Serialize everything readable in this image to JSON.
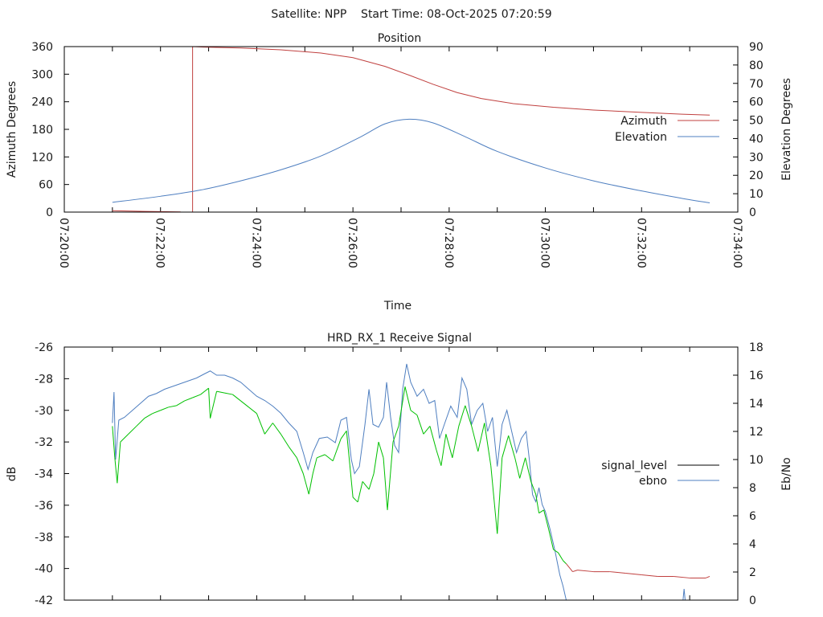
{
  "header": {
    "title": "Satellite: NPP    Start Time: 08-Oct-2025 07:20:59"
  },
  "colors": {
    "azimuth": "#c0403f",
    "elevation": "#4f7fc0",
    "signal_good": "#00c000",
    "signal_low": "#c0403f",
    "ebno": "#4f7fc0",
    "legend_signal": "#000000"
  },
  "chart_data": [
    {
      "type": "line",
      "title": "Position",
      "xlabel": "Time",
      "ylabel": "Azimuth Degrees",
      "y2label": "Elevation Degrees",
      "xlim": [
        "07:20:00",
        "07:34:00"
      ],
      "xticks_major": [
        "07:20:00",
        "07:22:00",
        "07:24:00",
        "07:26:00",
        "07:28:00",
        "07:30:00",
        "07:32:00",
        "07:34:00"
      ],
      "ylim": [
        0,
        360
      ],
      "yticks": [
        "0",
        "60",
        "120",
        "180",
        "240",
        "300",
        "360"
      ],
      "y2lim": [
        0,
        90
      ],
      "y2ticks": [
        "0",
        "10",
        "20",
        "30",
        "40",
        "50",
        "60",
        "70",
        "80",
        "90"
      ],
      "legend_position": "right",
      "series": [
        {
          "name": "Azimuth",
          "axis": "y",
          "points": [
            [
              "07:21:00",
              3
            ],
            [
              "07:21:40",
              1.5
            ],
            [
              "07:22:25",
              0.5
            ],
            null,
            [
              "07:22:40",
              0
            ],
            [
              "07:22:40",
              360
            ],
            [
              "07:22:54",
              359
            ],
            [
              "07:23:40",
              357
            ],
            [
              "07:24:30",
              353
            ],
            [
              "07:25:20",
              346
            ],
            [
              "07:26:00",
              336
            ],
            [
              "07:26:40",
              317
            ],
            [
              "07:27:10",
              298
            ],
            [
              "07:27:40",
              278
            ],
            [
              "07:28:10",
              260
            ],
            [
              "07:28:40",
              247
            ],
            [
              "07:29:20",
              236
            ],
            [
              "07:30:10",
              228
            ],
            [
              "07:31:00",
              222
            ],
            [
              "07:32:00",
              217
            ],
            [
              "07:32:50",
              213
            ],
            [
              "07:33:25",
              211
            ]
          ]
        },
        {
          "name": "Elevation",
          "axis": "y2",
          "points": [
            [
              "07:21:00",
              5.3
            ],
            [
              "07:22:00",
              8.6
            ],
            [
              "07:22:50",
              12
            ],
            [
              "07:23:40",
              17
            ],
            [
              "07:24:30",
              23
            ],
            [
              "07:25:20",
              30.5
            ],
            [
              "07:26:10",
              41
            ],
            [
              "07:26:40",
              48
            ],
            [
              "07:27:10",
              50.5
            ],
            [
              "07:27:40",
              48.5
            ],
            [
              "07:28:20",
              41
            ],
            [
              "07:29:00",
              33
            ],
            [
              "07:30:00",
              24
            ],
            [
              "07:31:00",
              17
            ],
            [
              "07:32:00",
              11.5
            ],
            [
              "07:32:50",
              7.5
            ],
            [
              "07:33:25",
              5
            ]
          ]
        }
      ]
    },
    {
      "type": "line",
      "title": "HRD_RX_1 Receive Signal",
      "ylabel": "dB",
      "y2label": "Eb/No",
      "xlim": [
        "07:20:00",
        "07:34:00"
      ],
      "ylim": [
        -42,
        -26
      ],
      "yticks": [
        "-42",
        "-40",
        "-38",
        "-36",
        "-34",
        "-32",
        "-30",
        "-28",
        "-26"
      ],
      "y2lim": [
        0,
        18
      ],
      "y2ticks": [
        "0",
        "2",
        "4",
        "6",
        "8",
        "10",
        "12",
        "14",
        "16",
        "18"
      ],
      "legend_position": "right",
      "signal_low_threshold": -39.9,
      "series": [
        {
          "name": "signal_level",
          "axis": "y",
          "points": [
            [
              "07:21:00",
              -31
            ],
            [
              "07:21:03",
              -33
            ],
            [
              "07:21:06",
              -34.6
            ],
            [
              "07:21:10",
              -32
            ],
            [
              "07:21:20",
              -31.5
            ],
            [
              "07:21:30",
              -31
            ],
            [
              "07:21:40",
              -30.5
            ],
            [
              "07:21:50",
              -30.2
            ],
            [
              "07:22:00",
              -30
            ],
            [
              "07:22:10",
              -29.8
            ],
            [
              "07:22:20",
              -29.7
            ],
            [
              "07:22:30",
              -29.4
            ],
            [
              "07:22:40",
              -29.2
            ],
            [
              "07:22:50",
              -29
            ],
            [
              "07:23:00",
              -28.6
            ],
            [
              "07:23:02",
              -30.5
            ],
            [
              "07:23:10",
              -28.8
            ],
            [
              "07:23:20",
              -28.9
            ],
            [
              "07:23:30",
              -29
            ],
            [
              "07:23:40",
              -29.4
            ],
            [
              "07:23:50",
              -29.8
            ],
            [
              "07:24:00",
              -30.2
            ],
            [
              "07:24:10",
              -31.5
            ],
            [
              "07:24:20",
              -30.8
            ],
            [
              "07:24:30",
              -31.5
            ],
            [
              "07:24:40",
              -32.3
            ],
            [
              "07:24:50",
              -33
            ],
            [
              "07:24:58",
              -34
            ],
            [
              "07:25:05",
              -35.3
            ],
            [
              "07:25:10",
              -34
            ],
            [
              "07:25:15",
              -33
            ],
            [
              "07:25:25",
              -32.8
            ],
            [
              "07:25:35",
              -33.2
            ],
            [
              "07:25:45",
              -31.8
            ],
            [
              "07:25:52",
              -31.3
            ],
            [
              "07:26:00",
              -35.5
            ],
            [
              "07:26:06",
              -35.8
            ],
            [
              "07:26:12",
              -34.5
            ],
            [
              "07:26:20",
              -35
            ],
            [
              "07:26:26",
              -34
            ],
            [
              "07:26:32",
              -32
            ],
            [
              "07:26:38",
              -33
            ],
            [
              "07:26:43",
              -36.3
            ],
            [
              "07:26:50",
              -32
            ],
            [
              "07:26:57",
              -31
            ],
            [
              "07:27:05",
              -28.5
            ],
            [
              "07:27:12",
              -30
            ],
            [
              "07:27:20",
              -30.3
            ],
            [
              "07:27:28",
              -31.5
            ],
            [
              "07:27:36",
              -31
            ],
            [
              "07:27:44",
              -32.5
            ],
            [
              "07:27:50",
              -33.5
            ],
            [
              "07:27:56",
              -31.5
            ],
            [
              "07:28:04",
              -33
            ],
            [
              "07:28:12",
              -31
            ],
            [
              "07:28:20",
              -29.7
            ],
            [
              "07:28:28",
              -31
            ],
            [
              "07:28:36",
              -32.6
            ],
            [
              "07:28:44",
              -30.8
            ],
            [
              "07:28:52",
              -33.5
            ],
            [
              "07:29:00",
              -37.8
            ],
            [
              "07:29:06",
              -33
            ],
            [
              "07:29:14",
              -31.6
            ],
            [
              "07:29:22",
              -33
            ],
            [
              "07:29:28",
              -34.3
            ],
            [
              "07:29:35",
              -33
            ],
            [
              "07:29:42",
              -34.5
            ],
            [
              "07:29:48",
              -35.3
            ],
            [
              "07:29:52",
              -36.5
            ],
            [
              "07:29:58",
              -36.3
            ],
            [
              "07:30:04",
              -37.5
            ],
            [
              "07:30:10",
              -38.8
            ],
            [
              "07:30:16",
              -39
            ],
            [
              "07:30:22",
              -39.5
            ],
            [
              "07:30:26",
              -39.7
            ],
            [
              "07:30:34",
              -40.2
            ],
            [
              "07:30:40",
              -40.1
            ],
            [
              "07:31:00",
              -40.2
            ],
            [
              "07:31:20",
              -40.2
            ],
            [
              "07:31:40",
              -40.3
            ],
            [
              "07:32:00",
              -40.4
            ],
            [
              "07:32:20",
              -40.5
            ],
            [
              "07:32:40",
              -40.5
            ],
            [
              "07:33:00",
              -40.6
            ],
            [
              "07:33:20",
              -40.6
            ],
            [
              "07:33:25",
              -40.5
            ]
          ]
        },
        {
          "name": "ebno",
          "axis": "y2",
          "points": [
            [
              "07:21:00",
              12.6
            ],
            [
              "07:21:02",
              14.8
            ],
            [
              "07:21:04",
              10
            ],
            [
              "07:21:08",
              12.8
            ],
            [
              "07:21:15",
              13
            ],
            [
              "07:21:25",
              13.5
            ],
            [
              "07:21:35",
              14
            ],
            [
              "07:21:45",
              14.5
            ],
            [
              "07:21:55",
              14.7
            ],
            [
              "07:22:05",
              15
            ],
            [
              "07:22:15",
              15.2
            ],
            [
              "07:22:25",
              15.4
            ],
            [
              "07:22:35",
              15.6
            ],
            [
              "07:22:45",
              15.8
            ],
            [
              "07:22:55",
              16.1
            ],
            [
              "07:23:02",
              16.3
            ],
            [
              "07:23:10",
              16
            ],
            [
              "07:23:20",
              16
            ],
            [
              "07:23:30",
              15.8
            ],
            [
              "07:23:40",
              15.5
            ],
            [
              "07:23:50",
              15
            ],
            [
              "07:24:00",
              14.5
            ],
            [
              "07:24:10",
              14.2
            ],
            [
              "07:24:20",
              13.8
            ],
            [
              "07:24:30",
              13.3
            ],
            [
              "07:24:40",
              12.6
            ],
            [
              "07:24:50",
              12
            ],
            [
              "07:24:58",
              10.5
            ],
            [
              "07:25:04",
              9.3
            ],
            [
              "07:25:10",
              10.5
            ],
            [
              "07:25:18",
              11.5
            ],
            [
              "07:25:28",
              11.6
            ],
            [
              "07:25:38",
              11.2
            ],
            [
              "07:25:45",
              12.8
            ],
            [
              "07:25:52",
              13
            ],
            [
              "07:25:58",
              10
            ],
            [
              "07:26:02",
              9
            ],
            [
              "07:26:08",
              9.5
            ],
            [
              "07:26:15",
              12.5
            ],
            [
              "07:26:20",
              15
            ],
            [
              "07:26:25",
              12.5
            ],
            [
              "07:26:32",
              12.3
            ],
            [
              "07:26:38",
              13
            ],
            [
              "07:26:42",
              15.5
            ],
            [
              "07:26:47",
              13
            ],
            [
              "07:26:52",
              11
            ],
            [
              "07:26:57",
              10.5
            ],
            [
              "07:27:02",
              15
            ],
            [
              "07:27:07",
              16.8
            ],
            [
              "07:27:12",
              15.5
            ],
            [
              "07:27:20",
              14.5
            ],
            [
              "07:27:28",
              15
            ],
            [
              "07:27:35",
              14
            ],
            [
              "07:27:42",
              14.2
            ],
            [
              "07:27:48",
              11.5
            ],
            [
              "07:27:54",
              12.5
            ],
            [
              "07:28:02",
              13.8
            ],
            [
              "07:28:10",
              13
            ],
            [
              "07:28:16",
              15.8
            ],
            [
              "07:28:22",
              15
            ],
            [
              "07:28:28",
              12.5
            ],
            [
              "07:28:35",
              13.5
            ],
            [
              "07:28:42",
              14
            ],
            [
              "07:28:48",
              12
            ],
            [
              "07:28:54",
              13
            ],
            [
              "07:29:00",
              9.5
            ],
            [
              "07:29:06",
              12.5
            ],
            [
              "07:29:12",
              13.5
            ],
            [
              "07:29:18",
              12
            ],
            [
              "07:29:24",
              10.5
            ],
            [
              "07:29:30",
              11.5
            ],
            [
              "07:29:36",
              12
            ],
            [
              "07:29:40",
              10
            ],
            [
              "07:29:44",
              7.5
            ],
            [
              "07:29:48",
              7
            ],
            [
              "07:29:52",
              8
            ],
            [
              "07:29:56",
              6.8
            ],
            [
              "07:30:00",
              6.3
            ],
            [
              "07:30:06",
              5
            ],
            [
              "07:30:12",
              3.5
            ],
            [
              "07:30:18",
              1.8
            ],
            [
              "07:30:22",
              1
            ],
            [
              "07:30:26",
              0
            ],
            [
              "07:30:30",
              -1
            ],
            [
              "07:32:50",
              -1
            ],
            [
              "07:32:53",
              0.8
            ],
            [
              "07:32:56",
              -1
            ]
          ]
        }
      ]
    }
  ]
}
